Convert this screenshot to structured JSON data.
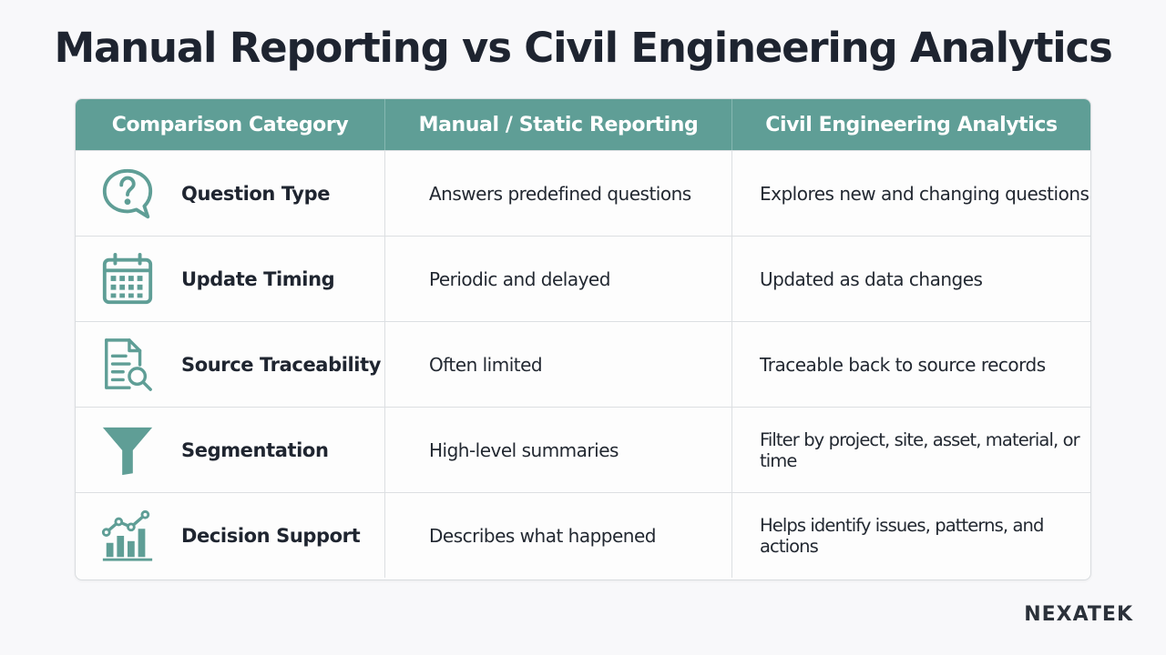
{
  "title": "Manual Reporting vs Civil Engineering Analytics",
  "colors": {
    "header_bg": "#5f9e96",
    "icon": "#5f9e96",
    "text": "#1f2530"
  },
  "table": {
    "headers": [
      "Comparison Category",
      "Manual / Static Reporting",
      "Civil Engineering Analytics"
    ],
    "rows": [
      {
        "icon": "question-bubble-icon",
        "category": "Question Type",
        "manual": "Answers predefined questions",
        "analytics": "Explores new and changing questions"
      },
      {
        "icon": "calendar-icon",
        "category": "Update Timing",
        "manual": "Periodic and delayed",
        "analytics": "Updated as data changes"
      },
      {
        "icon": "document-search-icon",
        "category": "Source Traceability",
        "manual": "Often limited",
        "analytics": "Traceable back to source records"
      },
      {
        "icon": "funnel-icon",
        "category": "Segmentation",
        "manual": "High-level summaries",
        "analytics": "Filter by project, site, asset, material, or time"
      },
      {
        "icon": "chart-trend-icon",
        "category": "Decision Support",
        "manual": "Describes what happened",
        "analytics": "Helps identify issues, patterns, and actions"
      }
    ]
  },
  "logo": {
    "text": "NEXATEK"
  }
}
